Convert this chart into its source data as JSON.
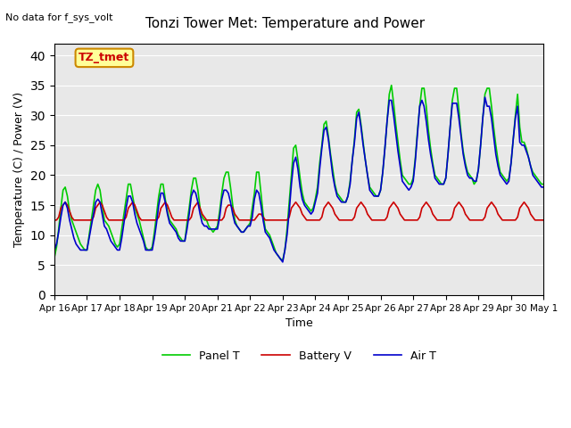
{
  "title": "Tonzi Tower Met: Temperature and Power",
  "xlabel": "Time",
  "ylabel": "Temperature (C) / Power (V)",
  "ylim": [
    0,
    42
  ],
  "yticks": [
    0,
    5,
    10,
    15,
    20,
    25,
    30,
    35,
    40
  ],
  "bg_color": "#e8e8e8",
  "fig_color": "#ffffff",
  "annotation_no_data": "No data for f_sys_volt",
  "annotation_box": "TZ_tmet",
  "legend_labels": [
    "Panel T",
    "Battery V",
    "Air T"
  ],
  "legend_colors": [
    "#00cc00",
    "#cc0000",
    "#0000cc"
  ],
  "xtick_labels": [
    "Apr 16",
    "Apr 17",
    "Apr 18",
    "Apr 19",
    "Apr 20",
    "Apr 21",
    "Apr 22",
    "Apr 23",
    "Apr 24",
    "Apr 25",
    "Apr 26",
    "Apr 27",
    "Apr 28",
    "Apr 29",
    "Apr 30",
    "May 1"
  ],
  "x": [
    0,
    0.067,
    0.133,
    0.2,
    0.267,
    0.333,
    0.4,
    0.467,
    0.533,
    0.6,
    0.667,
    0.733,
    0.8,
    0.867,
    0.933,
    1.0,
    1.067,
    1.133,
    1.2,
    1.267,
    1.333,
    1.4,
    1.467,
    1.533,
    1.6,
    1.667,
    1.733,
    1.8,
    1.867,
    1.933,
    2.0,
    2.067,
    2.133,
    2.2,
    2.267,
    2.333,
    2.4,
    2.467,
    2.533,
    2.6,
    2.667,
    2.733,
    2.8,
    2.867,
    2.933,
    3.0,
    3.067,
    3.133,
    3.2,
    3.267,
    3.333,
    3.4,
    3.467,
    3.533,
    3.6,
    3.667,
    3.733,
    3.8,
    3.867,
    3.933,
    4.0,
    4.067,
    4.133,
    4.2,
    4.267,
    4.333,
    4.4,
    4.467,
    4.533,
    4.6,
    4.667,
    4.733,
    4.8,
    4.867,
    4.933,
    5.0,
    5.067,
    5.133,
    5.2,
    5.267,
    5.333,
    5.4,
    5.467,
    5.533,
    5.6,
    5.667,
    5.733,
    5.8,
    5.867,
    5.933,
    6.0,
    6.067,
    6.133,
    6.2,
    6.267,
    6.333,
    6.4,
    6.467,
    6.533,
    6.6,
    6.667,
    6.733,
    6.8,
    6.867,
    6.933,
    7.0,
    7.067,
    7.133,
    7.2,
    7.267,
    7.333,
    7.4,
    7.467,
    7.533,
    7.6,
    7.667,
    7.733,
    7.8,
    7.867,
    7.933,
    8.0,
    8.067,
    8.133,
    8.2,
    8.267,
    8.333,
    8.4,
    8.467,
    8.533,
    8.6,
    8.667,
    8.733,
    8.8,
    8.867,
    8.933,
    9.0,
    9.067,
    9.133,
    9.2,
    9.267,
    9.333,
    9.4,
    9.467,
    9.533,
    9.6,
    9.667,
    9.733,
    9.8,
    9.867,
    9.933,
    10.0,
    10.067,
    10.133,
    10.2,
    10.267,
    10.333,
    10.4,
    10.467,
    10.533,
    10.6,
    10.667,
    10.733,
    10.8,
    10.867,
    10.933,
    11.0,
    11.067,
    11.133,
    11.2,
    11.267,
    11.333,
    11.4,
    11.467,
    11.533,
    11.6,
    11.667,
    11.733,
    11.8,
    11.867,
    11.933,
    12.0,
    12.067,
    12.133,
    12.2,
    12.267,
    12.333,
    12.4,
    12.467,
    12.533,
    12.6,
    12.667,
    12.733,
    12.8,
    12.867,
    12.933,
    13.0,
    13.067,
    13.133,
    13.2,
    13.267,
    13.333,
    13.4,
    13.467,
    13.533,
    13.6,
    13.667,
    13.733,
    13.8,
    13.867,
    13.933,
    14.0,
    14.067,
    14.133,
    14.2,
    14.267,
    14.333,
    14.4,
    14.467,
    14.533,
    14.6,
    14.667,
    14.733,
    14.8,
    14.867,
    14.933,
    15.0
  ],
  "panel_t": [
    6.2,
    8.0,
    11.0,
    14.5,
    17.5,
    18.0,
    16.5,
    14.0,
    12.5,
    11.5,
    10.5,
    9.5,
    8.5,
    8.0,
    7.5,
    7.5,
    10.0,
    12.5,
    15.0,
    17.5,
    18.5,
    17.5,
    15.0,
    12.5,
    12.0,
    11.5,
    10.5,
    9.5,
    8.5,
    8.0,
    8.5,
    11.0,
    13.5,
    16.0,
    18.5,
    18.5,
    16.5,
    14.5,
    13.5,
    12.5,
    11.0,
    9.5,
    8.0,
    7.5,
    7.5,
    8.0,
    10.5,
    13.5,
    16.5,
    18.5,
    18.5,
    16.0,
    14.0,
    12.5,
    12.0,
    11.5,
    11.0,
    10.0,
    9.5,
    9.0,
    9.0,
    12.0,
    14.5,
    17.5,
    19.5,
    19.5,
    17.5,
    14.5,
    13.0,
    12.5,
    12.5,
    11.5,
    11.0,
    10.5,
    11.0,
    11.5,
    14.0,
    17.0,
    19.5,
    20.5,
    20.5,
    18.0,
    15.0,
    12.5,
    11.5,
    11.0,
    10.5,
    10.5,
    11.0,
    11.5,
    12.0,
    14.5,
    17.0,
    20.5,
    20.5,
    17.0,
    13.5,
    11.0,
    10.5,
    10.0,
    9.0,
    8.0,
    7.0,
    6.5,
    6.0,
    5.8,
    7.5,
    11.0,
    15.5,
    20.0,
    24.5,
    25.0,
    22.5,
    19.5,
    17.0,
    15.5,
    15.0,
    14.5,
    14.0,
    14.5,
    16.0,
    18.0,
    22.0,
    25.0,
    28.5,
    29.0,
    26.5,
    23.5,
    21.0,
    18.5,
    17.0,
    16.5,
    16.0,
    15.5,
    15.5,
    16.5,
    19.0,
    22.5,
    26.0,
    30.5,
    31.0,
    28.5,
    25.5,
    22.5,
    20.0,
    18.0,
    17.5,
    17.0,
    16.5,
    16.5,
    17.5,
    20.5,
    24.5,
    29.0,
    33.5,
    35.0,
    32.0,
    28.5,
    25.5,
    22.5,
    20.0,
    19.5,
    19.0,
    18.5,
    18.5,
    19.5,
    23.0,
    27.5,
    31.5,
    34.5,
    34.5,
    31.5,
    27.5,
    24.5,
    22.0,
    20.0,
    19.5,
    19.0,
    18.5,
    18.5,
    19.5,
    23.5,
    28.0,
    32.5,
    34.5,
    34.5,
    31.0,
    27.0,
    24.0,
    22.0,
    20.5,
    20.0,
    19.5,
    18.5,
    19.0,
    21.0,
    25.0,
    29.5,
    33.5,
    34.5,
    34.5,
    31.5,
    28.0,
    25.0,
    22.5,
    20.5,
    20.0,
    19.5,
    19.0,
    19.5,
    22.0,
    26.0,
    30.0,
    33.5,
    28.0,
    25.5,
    25.5,
    24.5,
    23.0,
    21.5,
    20.5,
    20.0,
    19.5,
    19.0,
    18.5,
    18.5
  ],
  "battery_v": [
    12.5,
    12.5,
    13.0,
    14.5,
    15.0,
    15.5,
    15.0,
    14.0,
    13.0,
    12.5,
    12.5,
    12.5,
    12.5,
    12.5,
    12.5,
    12.5,
    12.5,
    12.5,
    13.0,
    14.5,
    15.0,
    15.5,
    15.0,
    14.0,
    13.0,
    12.5,
    12.5,
    12.5,
    12.5,
    12.5,
    12.5,
    12.5,
    12.5,
    13.0,
    14.5,
    15.0,
    15.5,
    15.0,
    14.0,
    13.0,
    12.5,
    12.5,
    12.5,
    12.5,
    12.5,
    12.5,
    12.5,
    12.5,
    13.0,
    14.5,
    15.0,
    15.5,
    15.0,
    14.0,
    13.0,
    12.5,
    12.5,
    12.5,
    12.5,
    12.5,
    12.5,
    12.5,
    12.5,
    13.0,
    14.5,
    15.0,
    15.5,
    14.5,
    13.5,
    13.0,
    12.5,
    12.5,
    12.5,
    12.5,
    12.5,
    12.5,
    12.5,
    12.5,
    13.0,
    14.5,
    15.0,
    15.0,
    14.5,
    13.5,
    13.0,
    12.5,
    12.5,
    12.5,
    12.5,
    12.5,
    12.5,
    12.5,
    12.5,
    13.0,
    13.5,
    13.5,
    13.0,
    12.5,
    12.5,
    12.5,
    12.5,
    12.5,
    12.5,
    12.5,
    12.5,
    12.5,
    12.5,
    12.5,
    13.0,
    14.5,
    15.0,
    15.5,
    15.0,
    14.5,
    13.5,
    13.0,
    12.5,
    12.5,
    12.5,
    12.5,
    12.5,
    12.5,
    12.5,
    13.0,
    14.5,
    15.0,
    15.5,
    15.0,
    14.5,
    13.5,
    13.0,
    12.5,
    12.5,
    12.5,
    12.5,
    12.5,
    12.5,
    12.5,
    13.0,
    14.5,
    15.0,
    15.5,
    15.0,
    14.5,
    13.5,
    13.0,
    12.5,
    12.5,
    12.5,
    12.5,
    12.5,
    12.5,
    12.5,
    13.0,
    14.5,
    15.0,
    15.5,
    15.0,
    14.5,
    13.5,
    13.0,
    12.5,
    12.5,
    12.5,
    12.5,
    12.5,
    12.5,
    12.5,
    13.0,
    14.5,
    15.0,
    15.5,
    15.0,
    14.5,
    13.5,
    13.0,
    12.5,
    12.5,
    12.5,
    12.5,
    12.5,
    12.5,
    12.5,
    13.0,
    14.5,
    15.0,
    15.5,
    15.0,
    14.5,
    13.5,
    13.0,
    12.5,
    12.5,
    12.5,
    12.5,
    12.5,
    12.5,
    12.5,
    13.0,
    14.5,
    15.0,
    15.5,
    15.0,
    14.5,
    13.5,
    13.0,
    12.5,
    12.5,
    12.5,
    12.5,
    12.5,
    12.5,
    12.5,
    13.0,
    14.5,
    15.0,
    15.5,
    15.0,
    14.5,
    13.5,
    13.0,
    12.5,
    12.5,
    12.5,
    12.5,
    12.5
  ],
  "air_t": [
    7.5,
    8.5,
    10.5,
    13.0,
    15.0,
    15.5,
    14.5,
    12.5,
    11.0,
    9.5,
    8.5,
    8.0,
    7.5,
    7.5,
    7.5,
    7.5,
    9.5,
    11.5,
    13.5,
    15.5,
    16.0,
    15.5,
    13.5,
    11.5,
    11.0,
    10.0,
    9.0,
    8.5,
    8.0,
    7.5,
    7.5,
    9.5,
    12.0,
    14.5,
    16.5,
    16.5,
    15.5,
    13.5,
    12.0,
    11.0,
    10.0,
    9.0,
    7.5,
    7.5,
    7.5,
    7.5,
    9.5,
    12.0,
    15.0,
    17.0,
    17.0,
    15.5,
    13.5,
    12.0,
    11.5,
    11.0,
    10.5,
    9.5,
    9.0,
    9.0,
    9.0,
    11.0,
    13.5,
    16.5,
    17.5,
    17.0,
    15.5,
    13.5,
    12.0,
    11.5,
    11.5,
    11.0,
    11.0,
    11.0,
    11.0,
    11.0,
    13.0,
    16.0,
    17.5,
    17.5,
    17.0,
    15.5,
    13.5,
    12.0,
    11.5,
    11.0,
    10.5,
    10.5,
    11.0,
    11.5,
    11.5,
    13.0,
    16.0,
    17.5,
    17.0,
    15.0,
    12.5,
    10.5,
    10.0,
    9.5,
    8.5,
    7.5,
    7.0,
    6.5,
    6.0,
    5.5,
    7.5,
    10.0,
    14.0,
    18.5,
    22.0,
    23.0,
    21.0,
    18.0,
    16.0,
    15.0,
    14.5,
    14.0,
    13.5,
    14.0,
    15.5,
    17.0,
    21.0,
    24.5,
    27.5,
    28.0,
    26.0,
    23.0,
    20.0,
    18.0,
    16.5,
    16.0,
    15.5,
    15.5,
    15.5,
    16.5,
    18.5,
    22.5,
    25.5,
    29.5,
    30.5,
    28.0,
    25.0,
    22.5,
    20.0,
    17.5,
    17.0,
    16.5,
    16.5,
    16.5,
    17.5,
    20.5,
    24.5,
    29.0,
    32.5,
    32.5,
    30.0,
    27.0,
    24.0,
    21.5,
    19.0,
    18.5,
    18.0,
    17.5,
    18.0,
    19.0,
    22.5,
    27.0,
    31.5,
    32.5,
    31.5,
    29.0,
    26.0,
    23.5,
    21.5,
    19.5,
    19.0,
    18.5,
    18.5,
    18.5,
    19.5,
    23.5,
    28.0,
    32.0,
    32.0,
    32.0,
    29.5,
    26.5,
    23.5,
    21.5,
    20.0,
    19.5,
    19.5,
    19.0,
    19.0,
    21.0,
    25.0,
    29.5,
    33.0,
    31.5,
    31.5,
    29.5,
    26.5,
    23.5,
    21.5,
    20.0,
    19.5,
    19.0,
    18.5,
    19.0,
    22.0,
    26.0,
    29.5,
    31.5,
    25.5,
    25.0,
    25.0,
    24.0,
    23.0,
    21.5,
    20.0,
    19.5,
    19.0,
    18.5,
    18.0,
    18.0
  ]
}
